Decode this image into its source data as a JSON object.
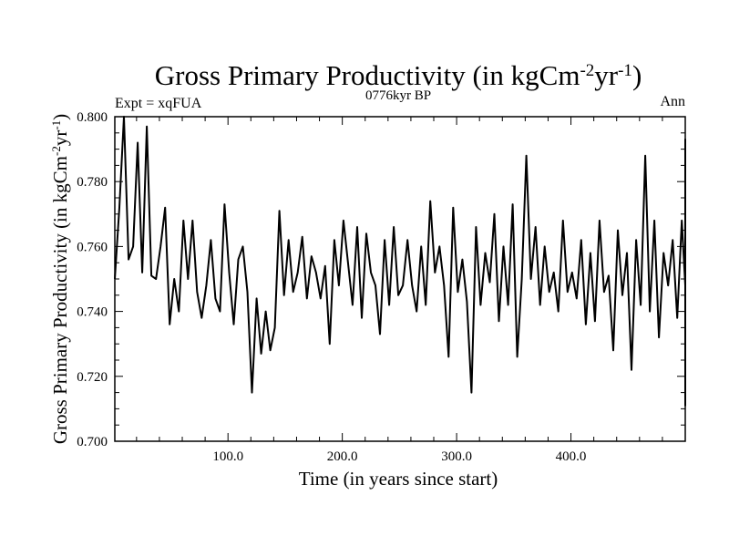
{
  "chart_data": {
    "type": "line",
    "title": "Gross Primary Productivity (in kgCm",
    "title_sup1": "-2",
    "title_mid": "yr",
    "title_sup2": "-1",
    "title_end": ")",
    "subtitle_left": "Expt = xqFUA",
    "subtitle_center": "0776kyr BP",
    "subtitle_right": "Ann",
    "xlabel": "Time (in years since start)",
    "ylabel": "Gross Primary Productivity (in kgCm",
    "ylabel_sup1": "-2",
    "ylabel_mid": "yr",
    "ylabel_sup2": "-1",
    "ylabel_end": ")",
    "xlim": [
      1,
      500
    ],
    "ylim": [
      0.7,
      0.8
    ],
    "xticks": [
      100,
      200,
      300,
      400
    ],
    "xtick_labels": [
      "100.0",
      "200.0",
      "300.0",
      "400.0"
    ],
    "yticks": [
      0.7,
      0.72,
      0.74,
      0.76,
      0.78,
      0.8
    ],
    "ytick_labels": [
      "0.700",
      "0.720",
      "0.740",
      "0.760",
      "0.780",
      "0.800"
    ],
    "grid": false,
    "series": [
      {
        "name": "GPP",
        "color": "#000000",
        "x_start": 1,
        "x_step": 4,
        "values": [
          0.75,
          0.772,
          0.8,
          0.756,
          0.76,
          0.792,
          0.752,
          0.797,
          0.751,
          0.75,
          0.76,
          0.772,
          0.736,
          0.75,
          0.74,
          0.768,
          0.75,
          0.768,
          0.746,
          0.738,
          0.748,
          0.762,
          0.744,
          0.74,
          0.773,
          0.752,
          0.736,
          0.756,
          0.76,
          0.746,
          0.715,
          0.744,
          0.727,
          0.74,
          0.728,
          0.735,
          0.771,
          0.745,
          0.762,
          0.746,
          0.752,
          0.763,
          0.744,
          0.757,
          0.752,
          0.744,
          0.754,
          0.73,
          0.762,
          0.748,
          0.768,
          0.755,
          0.742,
          0.766,
          0.738,
          0.764,
          0.752,
          0.748,
          0.733,
          0.762,
          0.742,
          0.766,
          0.745,
          0.748,
          0.762,
          0.748,
          0.74,
          0.76,
          0.742,
          0.774,
          0.752,
          0.76,
          0.748,
          0.726,
          0.772,
          0.746,
          0.756,
          0.743,
          0.715,
          0.766,
          0.742,
          0.758,
          0.749,
          0.77,
          0.737,
          0.76,
          0.742,
          0.773,
          0.726,
          0.75,
          0.788,
          0.75,
          0.766,
          0.742,
          0.76,
          0.746,
          0.752,
          0.74,
          0.768,
          0.746,
          0.752,
          0.744,
          0.762,
          0.736,
          0.758,
          0.737,
          0.768,
          0.746,
          0.751,
          0.728,
          0.765,
          0.745,
          0.758,
          0.722,
          0.762,
          0.742,
          0.788,
          0.74,
          0.768,
          0.732,
          0.758,
          0.748,
          0.762,
          0.738,
          0.768,
          0.748,
          0.759,
          0.744,
          0.77,
          0.75,
          0.758,
          0.742,
          0.752,
          0.726,
          0.766,
          0.748,
          0.758,
          0.744,
          0.761,
          0.736,
          0.768,
          0.752,
          0.76,
          0.747,
          0.772,
          0.75,
          0.758,
          0.744,
          0.766,
          0.748,
          0.757,
          0.745,
          0.762,
          0.746,
          0.768,
          0.748,
          0.738,
          0.76,
          0.742,
          0.763,
          0.733,
          0.75,
          0.766,
          0.738,
          0.755,
          0.744,
          0.764,
          0.742,
          0.752,
          0.738,
          0.758,
          0.718,
          0.745,
          0.76,
          0.742,
          0.765,
          0.724,
          0.755,
          0.768,
          0.742,
          0.76,
          0.744,
          0.764,
          0.74,
          0.748,
          0.76,
          0.744,
          0.734,
          0.762,
          0.722,
          0.766,
          0.748,
          0.76,
          0.742,
          0.793,
          0.752,
          0.733,
          0.768,
          0.746,
          0.756,
          0.74,
          0.773,
          0.752,
          0.746,
          0.757,
          0.748,
          0.76,
          0.734,
          0.774,
          0.738,
          0.755,
          0.76,
          0.746,
          0.772,
          0.743,
          0.75,
          0.793,
          0.754,
          0.718,
          0.742,
          0.768,
          0.745,
          0.756,
          0.74,
          0.764,
          0.752,
          0.746,
          0.772,
          0.742,
          0.76,
          0.722,
          0.752,
          0.766,
          0.744,
          0.758,
          0.746,
          0.79,
          0.747,
          0.733,
          0.772,
          0.756,
          0.742,
          0.76,
          0.79,
          0.748,
          0.755,
          0.739,
          0.766,
          0.75,
          0.758,
          0.734,
          0.744,
          0.764,
          0.752,
          0.742,
          0.748,
          0.76,
          0.746,
          0.77,
          0.752,
          0.734,
          0.756,
          0.744,
          0.736,
          0.762,
          0.714,
          0.75,
          0.742,
          0.752,
          0.735,
          0.756,
          0.711,
          0.762,
          0.752,
          0.772,
          0.752,
          0.762
        ]
      }
    ]
  }
}
